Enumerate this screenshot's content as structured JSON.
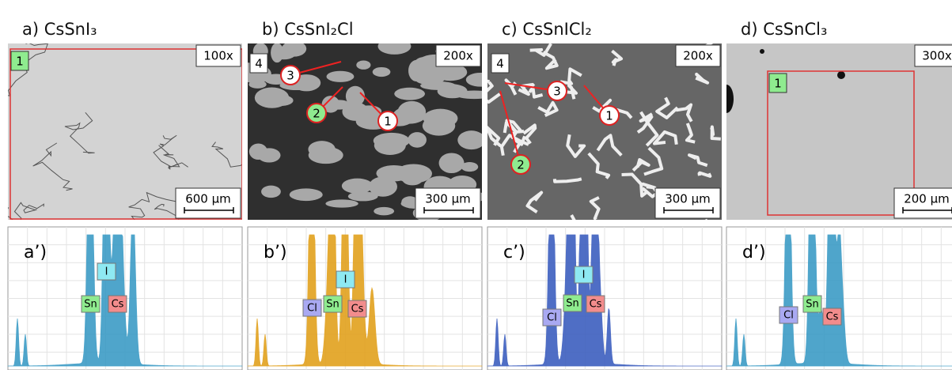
{
  "panels": [
    {
      "title": "a) CsSnI₃",
      "magnification": "100x",
      "scale_bar": "600 µm",
      "markers": [
        "1"
      ],
      "spectrum_label": "a’)",
      "elements": [
        {
          "label": "I",
          "color": "#8ee9f2"
        },
        {
          "label": "Sn",
          "color": "#8feb8f"
        },
        {
          "label": "Cs",
          "color": "#f28c8c"
        }
      ]
    },
    {
      "title": "b) CsSnI₂Cl",
      "magnification": "200x",
      "scale_bar": "300 µm",
      "markers": [
        "4",
        "3",
        "2",
        "1"
      ],
      "spectrum_label": "b’)",
      "elements": [
        {
          "label": "I",
          "color": "#8ee9f2"
        },
        {
          "label": "Sn",
          "color": "#8feb8f"
        },
        {
          "label": "Cl",
          "color": "#a9a9f2"
        },
        {
          "label": "Cs",
          "color": "#f28c8c"
        }
      ]
    },
    {
      "title": "c) CsSnICl₂",
      "magnification": "200x",
      "scale_bar": "300 µm",
      "markers": [
        "4",
        "3",
        "1",
        "2"
      ],
      "spectrum_label": "c’)",
      "elements": [
        {
          "label": "I",
          "color": "#8ee9f2"
        },
        {
          "label": "Cl",
          "color": "#a9a9f2"
        },
        {
          "label": "Sn",
          "color": "#8feb8f"
        },
        {
          "label": "Cs",
          "color": "#f28c8c"
        }
      ]
    },
    {
      "title": "d) CsSnCl₃",
      "magnification": "300x",
      "scale_bar": "200 µm",
      "markers": [
        "1"
      ],
      "spectrum_label": "d’)",
      "elements": [
        {
          "label": "Cl",
          "color": "#a9a9f2"
        },
        {
          "label": "Sn",
          "color": "#8feb8f"
        },
        {
          "label": "Cs",
          "color": "#f28c8c"
        }
      ]
    }
  ]
}
